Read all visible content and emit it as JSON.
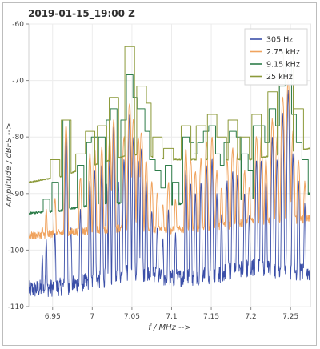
{
  "chart_data": {
    "type": "line",
    "title": "2019-01-15_19:00 Z",
    "xlabel": "f / MHz -->",
    "ylabel": "Amplitude / dBFS -->",
    "xlim": [
      6.92,
      7.275
    ],
    "ylim": [
      -110,
      -60
    ],
    "x_ticks": [
      6.95,
      7,
      7.05,
      7.1,
      7.15,
      7.2,
      7.25
    ],
    "x_tick_labels": [
      "6.95",
      "7",
      "7.05",
      "7.1",
      "7.15",
      "7.2",
      "7.25"
    ],
    "y_ticks": [
      -60,
      -70,
      -80,
      -90,
      -100,
      -110
    ],
    "y_tick_labels": [
      "-60",
      "-70",
      "-80",
      "-90",
      "-100",
      "-110"
    ],
    "grid": true,
    "legend_position": "top-right",
    "series": [
      {
        "name": "305 Hz",
        "color": "#3b4fa8",
        "noise_floor": [
          [
            6.92,
            -107
          ],
          [
            6.96,
            -106.5
          ],
          [
            7.0,
            -105.5
          ],
          [
            7.05,
            -104
          ],
          [
            7.1,
            -105
          ],
          [
            7.15,
            -104.5
          ],
          [
            7.2,
            -103
          ],
          [
            7.275,
            -104
          ]
        ],
        "peaks": [
          [
            6.937,
            -101
          ],
          [
            6.942,
            -98
          ],
          [
            6.953,
            -97
          ],
          [
            6.967,
            -79
          ],
          [
            6.973,
            -96
          ],
          [
            6.985,
            -93
          ],
          [
            6.997,
            -88
          ],
          [
            7.003,
            -86
          ],
          [
            7.012,
            -85
          ],
          [
            7.018,
            -88
          ],
          [
            7.022,
            -84
          ],
          [
            7.027,
            -78
          ],
          [
            7.033,
            -88
          ],
          [
            7.04,
            -84
          ],
          [
            7.047,
            -76
          ],
          [
            7.052,
            -80
          ],
          [
            7.058,
            -84
          ],
          [
            7.062,
            -82
          ],
          [
            7.068,
            -88
          ],
          [
            7.075,
            -93
          ],
          [
            7.082,
            -96
          ],
          [
            7.089,
            -98
          ],
          [
            7.096,
            -93
          ],
          [
            7.105,
            -97
          ],
          [
            7.118,
            -86
          ],
          [
            7.124,
            -88
          ],
          [
            7.13,
            -90
          ],
          [
            7.137,
            -88
          ],
          [
            7.144,
            -85
          ],
          [
            7.151,
            -84
          ],
          [
            7.157,
            -90
          ],
          [
            7.163,
            -94
          ],
          [
            7.17,
            -88
          ],
          [
            7.177,
            -86
          ],
          [
            7.183,
            -87
          ],
          [
            7.192,
            -90
          ],
          [
            7.198,
            -94
          ],
          [
            7.207,
            -84
          ],
          [
            7.213,
            -84
          ],
          [
            7.219,
            -88
          ],
          [
            7.227,
            -80
          ],
          [
            7.233,
            -84
          ],
          [
            7.24,
            -76
          ],
          [
            7.247,
            -72
          ],
          [
            7.253,
            -83
          ],
          [
            7.26,
            -88
          ],
          [
            7.268,
            -92
          ]
        ]
      },
      {
        "name": "2.75 kHz",
        "color": "#f0a35e",
        "noise_floor": [
          [
            6.92,
            -97.5
          ],
          [
            6.96,
            -97
          ],
          [
            7.0,
            -96.5
          ],
          [
            7.05,
            -96
          ],
          [
            7.1,
            -96.5
          ],
          [
            7.15,
            -96
          ],
          [
            7.2,
            -95
          ],
          [
            7.275,
            -94.5
          ]
        ],
        "peaks": [
          [
            6.937,
            -96
          ],
          [
            6.942,
            -93
          ],
          [
            6.953,
            -91
          ],
          [
            6.967,
            -78
          ],
          [
            6.985,
            -87
          ],
          [
            6.997,
            -83
          ],
          [
            7.003,
            -82
          ],
          [
            7.012,
            -82
          ],
          [
            7.022,
            -80
          ],
          [
            7.027,
            -77
          ],
          [
            7.04,
            -80
          ],
          [
            7.047,
            -74
          ],
          [
            7.052,
            -77
          ],
          [
            7.058,
            -80
          ],
          [
            7.062,
            -79
          ],
          [
            7.068,
            -84
          ],
          [
            7.075,
            -88
          ],
          [
            7.082,
            -90
          ],
          [
            7.089,
            -92
          ],
          [
            7.096,
            -88
          ],
          [
            7.105,
            -91
          ],
          [
            7.118,
            -82
          ],
          [
            7.124,
            -84
          ],
          [
            7.13,
            -86
          ],
          [
            7.137,
            -84
          ],
          [
            7.144,
            -81
          ],
          [
            7.151,
            -80
          ],
          [
            7.157,
            -86
          ],
          [
            7.163,
            -89
          ],
          [
            7.17,
            -84
          ],
          [
            7.177,
            -82
          ],
          [
            7.183,
            -83
          ],
          [
            7.192,
            -86
          ],
          [
            7.198,
            -89
          ],
          [
            7.207,
            -80
          ],
          [
            7.213,
            -80
          ],
          [
            7.219,
            -84
          ],
          [
            7.227,
            -77
          ],
          [
            7.233,
            -80
          ],
          [
            7.24,
            -73
          ],
          [
            7.247,
            -70
          ],
          [
            7.253,
            -79
          ],
          [
            7.26,
            -84
          ],
          [
            7.268,
            -88
          ]
        ]
      },
      {
        "name": "9.15 kHz",
        "color": "#2e7d4a",
        "noise_floor": [
          [
            6.92,
            -93.5
          ],
          [
            6.96,
            -93
          ],
          [
            7.0,
            -92
          ],
          [
            7.05,
            -91.5
          ],
          [
            7.1,
            -92
          ],
          [
            7.15,
            -91
          ],
          [
            7.2,
            -91
          ],
          [
            7.275,
            -90
          ]
        ],
        "peaks": [
          [
            6.942,
            -91
          ],
          [
            6.953,
            -88
          ],
          [
            6.967,
            -77
          ],
          [
            6.985,
            -85
          ],
          [
            6.997,
            -81
          ],
          [
            7.003,
            -80
          ],
          [
            7.012,
            -80
          ],
          [
            7.022,
            -77
          ],
          [
            7.027,
            -75
          ],
          [
            7.04,
            -77
          ],
          [
            7.047,
            -69
          ],
          [
            7.052,
            -73
          ],
          [
            7.058,
            -75
          ],
          [
            7.062,
            -75
          ],
          [
            7.068,
            -79
          ],
          [
            7.075,
            -84
          ],
          [
            7.082,
            -86
          ],
          [
            7.089,
            -89
          ],
          [
            7.096,
            -85
          ],
          [
            7.105,
            -88
          ],
          [
            7.118,
            -80
          ],
          [
            7.124,
            -81
          ],
          [
            7.13,
            -83
          ],
          [
            7.137,
            -81
          ],
          [
            7.144,
            -79
          ],
          [
            7.151,
            -78
          ],
          [
            7.157,
            -83
          ],
          [
            7.163,
            -85
          ],
          [
            7.17,
            -81
          ],
          [
            7.177,
            -79
          ],
          [
            7.183,
            -80
          ],
          [
            7.192,
            -83
          ],
          [
            7.198,
            -86
          ],
          [
            7.207,
            -78
          ],
          [
            7.213,
            -78
          ],
          [
            7.219,
            -81
          ],
          [
            7.227,
            -75
          ],
          [
            7.233,
            -78
          ],
          [
            7.24,
            -71
          ],
          [
            7.247,
            -67
          ],
          [
            7.253,
            -76
          ],
          [
            7.26,
            -81
          ],
          [
            7.268,
            -84
          ]
        ]
      },
      {
        "name": "25 kHz",
        "color": "#8c9a3a",
        "noise_floor": [
          [
            6.92,
            -88
          ],
          [
            6.96,
            -87
          ],
          [
            7.0,
            -85
          ],
          [
            7.05,
            -83
          ],
          [
            7.1,
            -84
          ],
          [
            7.15,
            -84
          ],
          [
            7.2,
            -84
          ],
          [
            7.275,
            -82
          ]
        ],
        "peaks": [
          [
            6.953,
            -84
          ],
          [
            6.967,
            -77
          ],
          [
            6.985,
            -83
          ],
          [
            6.997,
            -79
          ],
          [
            7.012,
            -78
          ],
          [
            7.027,
            -73
          ],
          [
            7.047,
            -64
          ],
          [
            7.062,
            -71
          ],
          [
            7.068,
            -74
          ],
          [
            7.082,
            -80
          ],
          [
            7.096,
            -82
          ],
          [
            7.118,
            -78
          ],
          [
            7.137,
            -78
          ],
          [
            7.151,
            -76
          ],
          [
            7.163,
            -80
          ],
          [
            7.177,
            -77
          ],
          [
            7.192,
            -80
          ],
          [
            7.207,
            -76
          ],
          [
            7.227,
            -72
          ],
          [
            7.24,
            -69
          ],
          [
            7.247,
            -65
          ],
          [
            7.26,
            -75
          ]
        ]
      }
    ]
  }
}
